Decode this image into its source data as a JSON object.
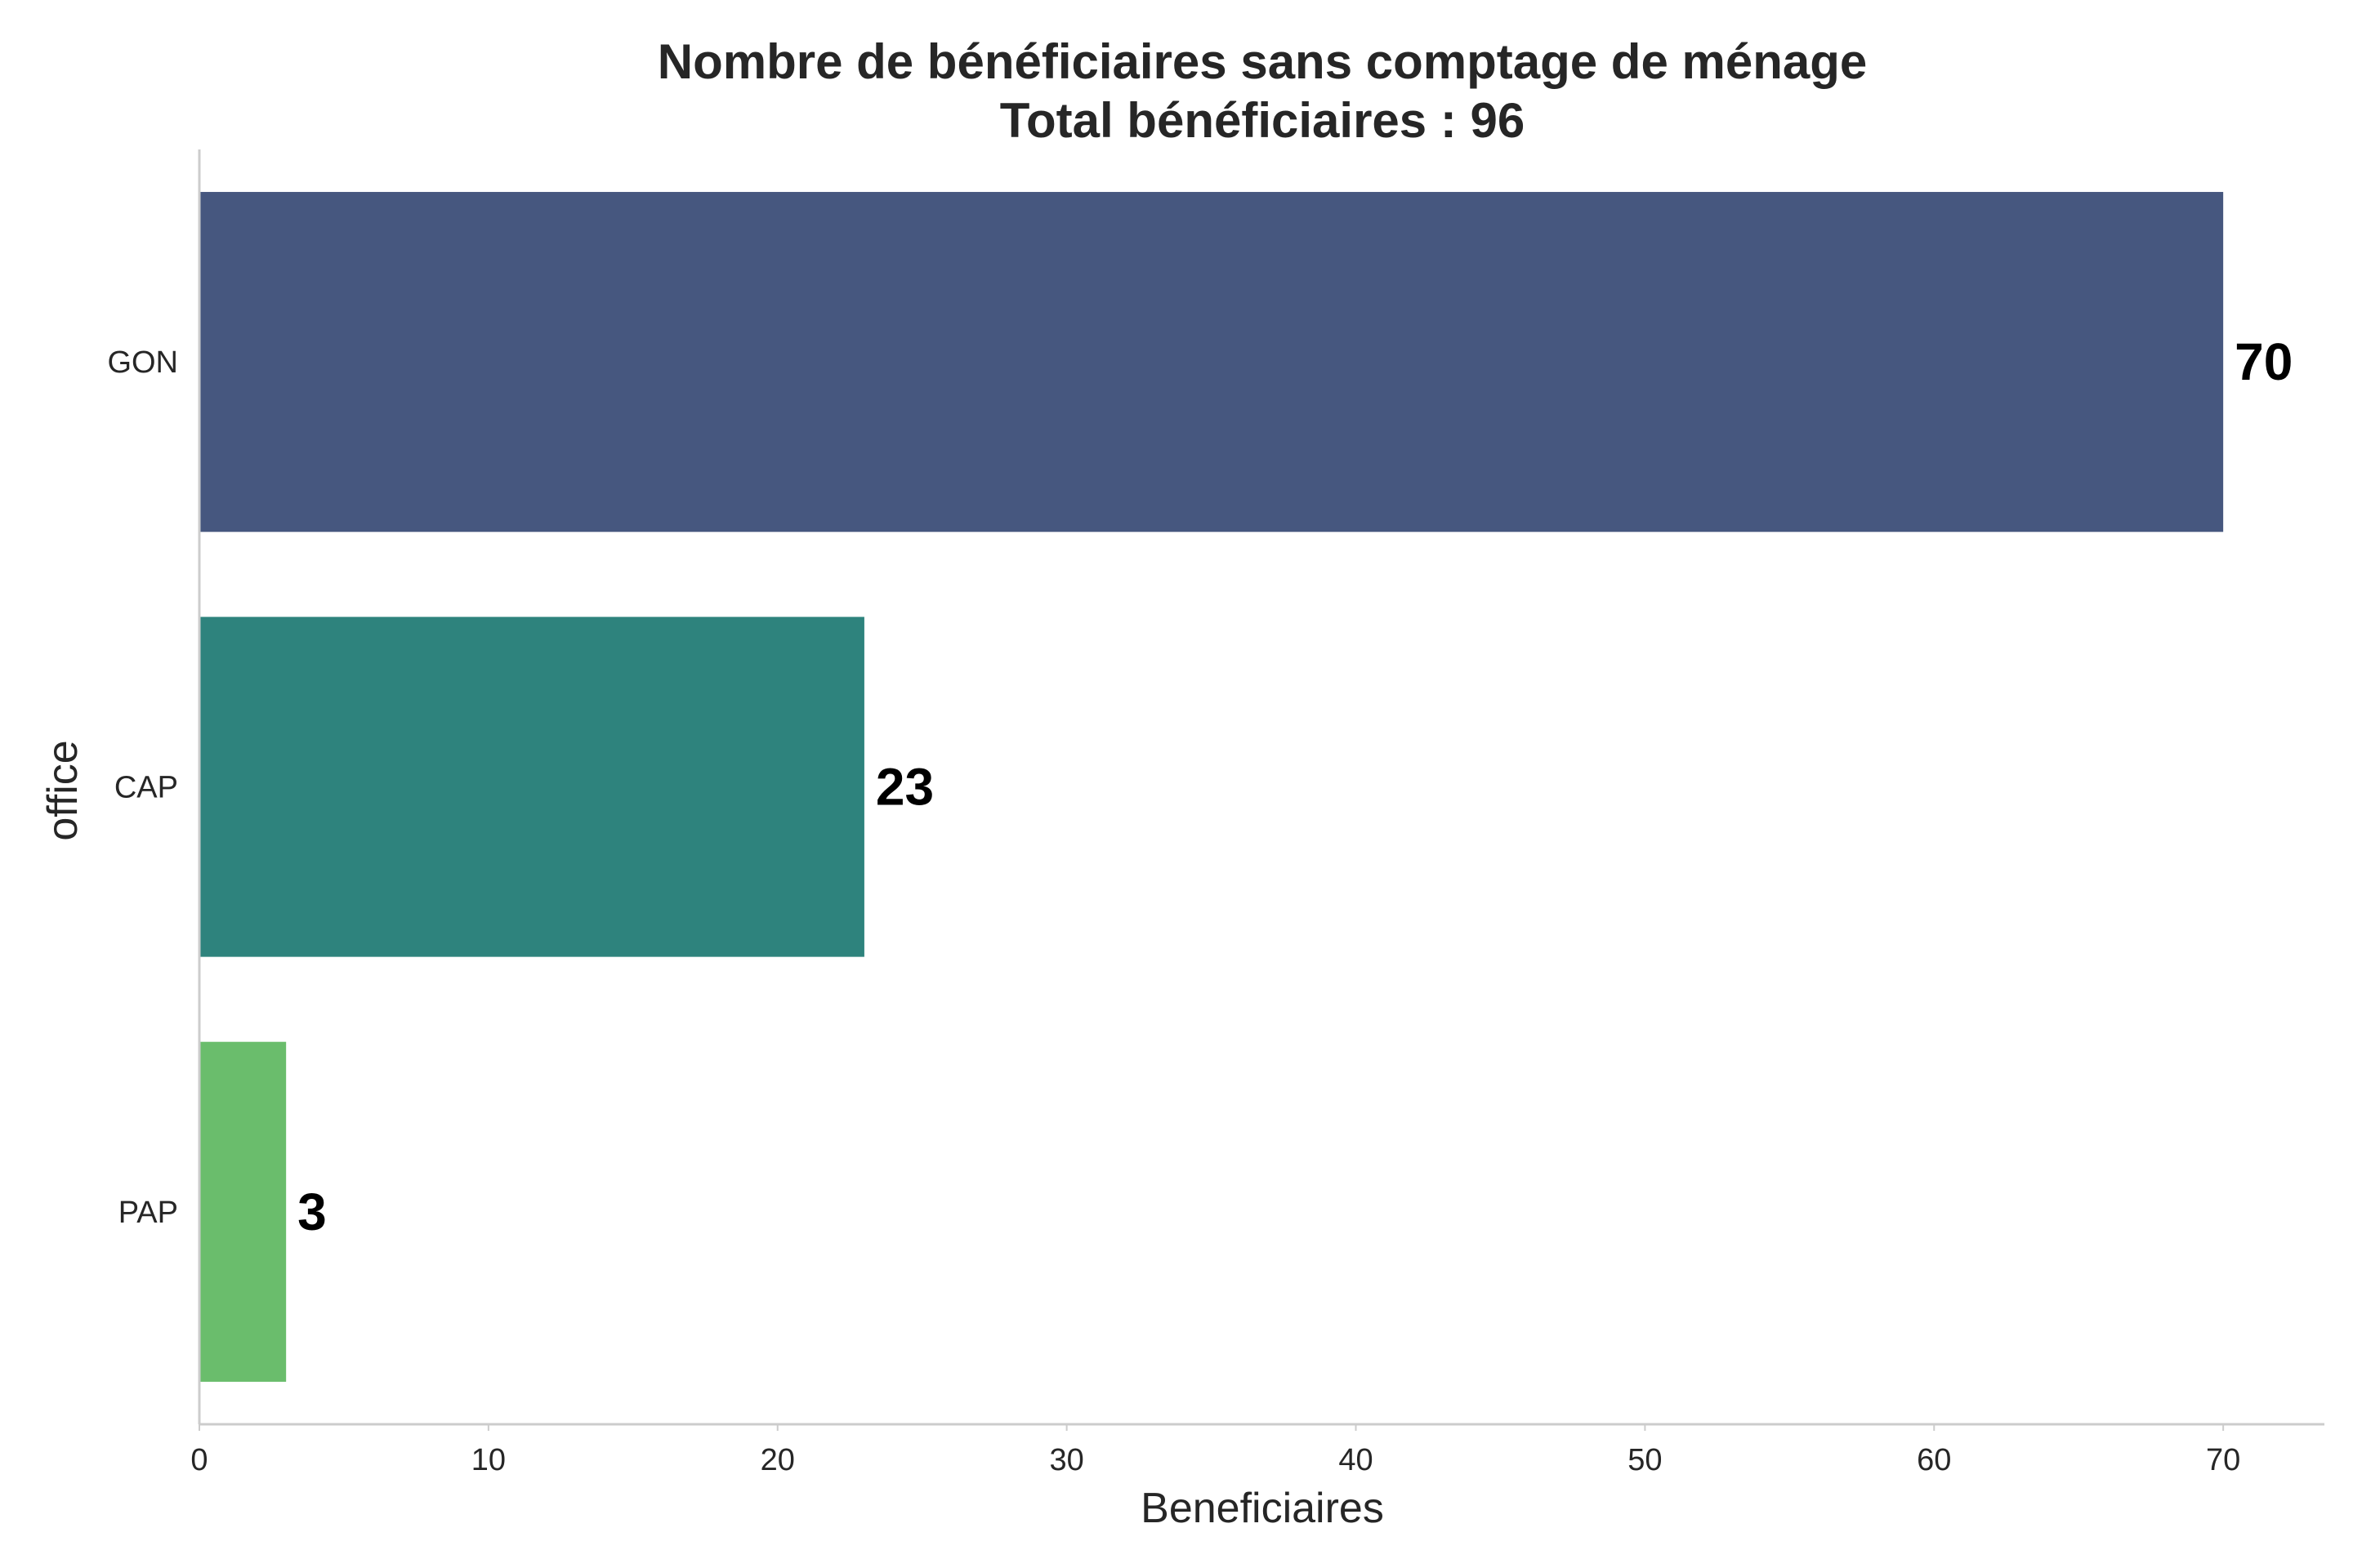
{
  "chart_data": {
    "type": "bar",
    "orientation": "horizontal",
    "title": "Nombre de bénéficiaires sans comptage de ménage",
    "subtitle": "Total bénéficiaires : 96",
    "xlabel": "Beneficiaires",
    "ylabel": "office",
    "categories": [
      "GON",
      "CAP",
      "PAP"
    ],
    "values": [
      70,
      23,
      3
    ],
    "data_labels": [
      "70",
      "23",
      "3"
    ],
    "colors": [
      "#46577f",
      "#2e837d",
      "#6abd6c"
    ],
    "xlim": [
      0,
      73.5
    ],
    "xticks": [
      0,
      10,
      20,
      30,
      40,
      50,
      60,
      70
    ],
    "grid": false,
    "legend": "none"
  }
}
